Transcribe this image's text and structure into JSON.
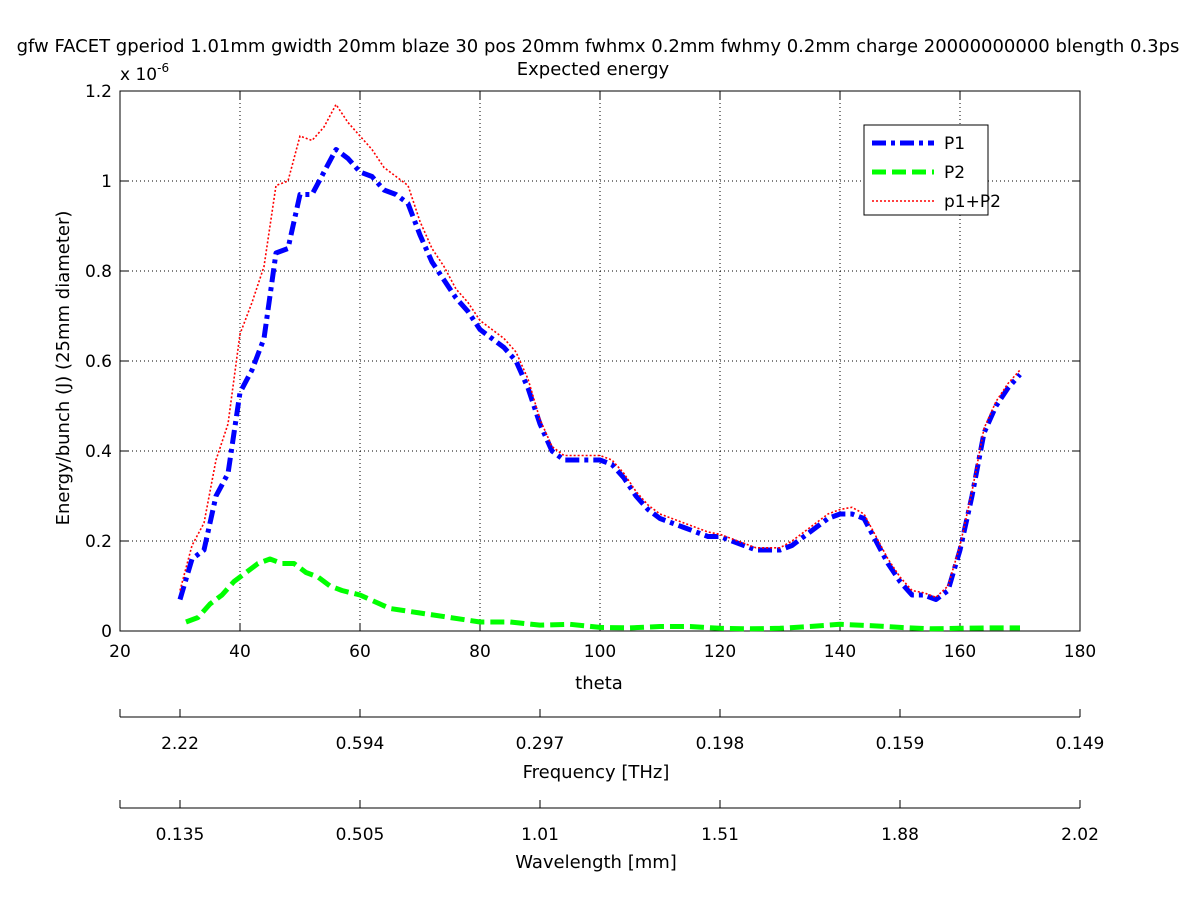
{
  "chart_data": {
    "type": "line",
    "title": "gfw FACET gperiod 1.01mm gwidth 20mm blaze 30 pos 20mm fwhmx 0.2mm fwhmy 0.2mm charge 20000000000 blength 0.3ps",
    "subtitle": "Expected energy",
    "xlabel": "theta",
    "ylabel": "Energy/bunch (J) (25mm diameter)",
    "y_exponent_label": "x 10",
    "y_exponent_power": "-6",
    "xlim": [
      20,
      180
    ],
    "ylim": [
      0,
      1.2
    ],
    "x_ticks": [
      20,
      40,
      60,
      80,
      100,
      120,
      140,
      160,
      180
    ],
    "x_tick_labels": [
      "20",
      "40",
      "60",
      "80",
      "100",
      "120",
      "140",
      "160",
      "180"
    ],
    "y_ticks": [
      0,
      0.2,
      0.4,
      0.6,
      0.8,
      1.0,
      1.2
    ],
    "y_tick_labels": [
      "0",
      "0.2",
      "0.4",
      "0.6",
      "0.8",
      "1",
      "1.2"
    ],
    "grid": true,
    "legend_position": "top-right",
    "series": [
      {
        "name": "P1",
        "color": "#0000ff",
        "style": "dashdot",
        "x": [
          30,
          32,
          34,
          36,
          38,
          40,
          42,
          44,
          46,
          48,
          50,
          52,
          54,
          56,
          58,
          60,
          62,
          64,
          66,
          68,
          70,
          72,
          74,
          76,
          78,
          80,
          82,
          84,
          86,
          88,
          90,
          92,
          94,
          96,
          98,
          100,
          102,
          104,
          106,
          108,
          110,
          112,
          114,
          116,
          118,
          120,
          122,
          124,
          126,
          128,
          130,
          132,
          134,
          136,
          138,
          140,
          142,
          144,
          146,
          148,
          150,
          152,
          154,
          156,
          158,
          160,
          162,
          164,
          166,
          168,
          170
        ],
        "y": [
          0.07,
          0.16,
          0.18,
          0.3,
          0.35,
          0.53,
          0.58,
          0.65,
          0.84,
          0.85,
          0.97,
          0.97,
          1.02,
          1.07,
          1.05,
          1.02,
          1.01,
          0.98,
          0.97,
          0.95,
          0.88,
          0.82,
          0.78,
          0.74,
          0.71,
          0.67,
          0.65,
          0.63,
          0.6,
          0.54,
          0.46,
          0.4,
          0.38,
          0.38,
          0.38,
          0.38,
          0.37,
          0.34,
          0.3,
          0.27,
          0.25,
          0.24,
          0.23,
          0.22,
          0.21,
          0.21,
          0.2,
          0.19,
          0.18,
          0.18,
          0.18,
          0.19,
          0.21,
          0.23,
          0.25,
          0.26,
          0.26,
          0.25,
          0.2,
          0.15,
          0.11,
          0.08,
          0.08,
          0.07,
          0.09,
          0.18,
          0.3,
          0.44,
          0.5,
          0.54,
          0.57
        ]
      },
      {
        "name": "P2",
        "color": "#00ff00",
        "style": "dashed",
        "x": [
          31,
          33,
          35,
          37,
          39,
          41,
          43,
          45,
          47,
          49,
          51,
          53,
          55,
          57,
          60,
          65,
          70,
          75,
          80,
          85,
          90,
          95,
          100,
          105,
          110,
          115,
          120,
          125,
          130,
          135,
          140,
          145,
          150,
          155,
          160,
          165,
          170
        ],
        "y": [
          0.02,
          0.03,
          0.06,
          0.08,
          0.11,
          0.13,
          0.15,
          0.16,
          0.15,
          0.15,
          0.13,
          0.12,
          0.1,
          0.09,
          0.08,
          0.05,
          0.04,
          0.03,
          0.02,
          0.02,
          0.013,
          0.015,
          0.008,
          0.007,
          0.01,
          0.01,
          0.006,
          0.005,
          0.006,
          0.01,
          0.015,
          0.012,
          0.008,
          0.005,
          0.006,
          0.007,
          0.007
        ]
      },
      {
        "name": "p1+P2",
        "color": "#ff0000",
        "style": "dotted",
        "x": [
          30,
          32,
          34,
          36,
          38,
          40,
          42,
          44,
          46,
          48,
          50,
          52,
          54,
          56,
          58,
          60,
          62,
          64,
          66,
          68,
          70,
          72,
          74,
          76,
          78,
          80,
          82,
          84,
          86,
          88,
          90,
          92,
          94,
          96,
          98,
          100,
          102,
          104,
          106,
          108,
          110,
          112,
          114,
          116,
          118,
          120,
          122,
          124,
          126,
          128,
          130,
          132,
          134,
          136,
          138,
          140,
          142,
          144,
          146,
          148,
          150,
          152,
          154,
          156,
          158,
          160,
          162,
          164,
          166,
          168,
          170
        ],
        "y": [
          0.09,
          0.19,
          0.24,
          0.38,
          0.46,
          0.66,
          0.73,
          0.81,
          0.99,
          1.0,
          1.1,
          1.09,
          1.12,
          1.17,
          1.13,
          1.1,
          1.07,
          1.03,
          1.01,
          0.99,
          0.91,
          0.85,
          0.81,
          0.76,
          0.73,
          0.69,
          0.67,
          0.65,
          0.62,
          0.56,
          0.47,
          0.41,
          0.39,
          0.39,
          0.39,
          0.39,
          0.38,
          0.35,
          0.31,
          0.28,
          0.26,
          0.25,
          0.24,
          0.23,
          0.22,
          0.215,
          0.205,
          0.195,
          0.185,
          0.185,
          0.185,
          0.2,
          0.22,
          0.24,
          0.26,
          0.27,
          0.275,
          0.26,
          0.21,
          0.16,
          0.12,
          0.09,
          0.085,
          0.075,
          0.1,
          0.19,
          0.31,
          0.45,
          0.51,
          0.55,
          0.58
        ]
      }
    ],
    "secondary_axes": [
      {
        "name": "frequency",
        "label": "Frequency [THz]",
        "tick_theta": [
          30,
          50,
          70,
          90,
          110,
          130,
          150,
          170
        ],
        "tick_theta_all": [
          20,
          30,
          50,
          70,
          90,
          110,
          130,
          150,
          170,
          180
        ],
        "tick_labels": [
          "2.22",
          "0.594",
          "0.297",
          "0.198",
          "0.159",
          "0.149"
        ],
        "label_theta": [
          30,
          60,
          90,
          120,
          150,
          180
        ]
      },
      {
        "name": "wavelength",
        "label": "Wavelength [mm]",
        "tick_theta": [
          20,
          30,
          60,
          90,
          120,
          150,
          180
        ],
        "tick_labels": [
          "0.135",
          "0.505",
          "1.01",
          "1.51",
          "1.88",
          "2.02"
        ],
        "label_theta": [
          30,
          60,
          90,
          120,
          150,
          180
        ]
      }
    ]
  }
}
